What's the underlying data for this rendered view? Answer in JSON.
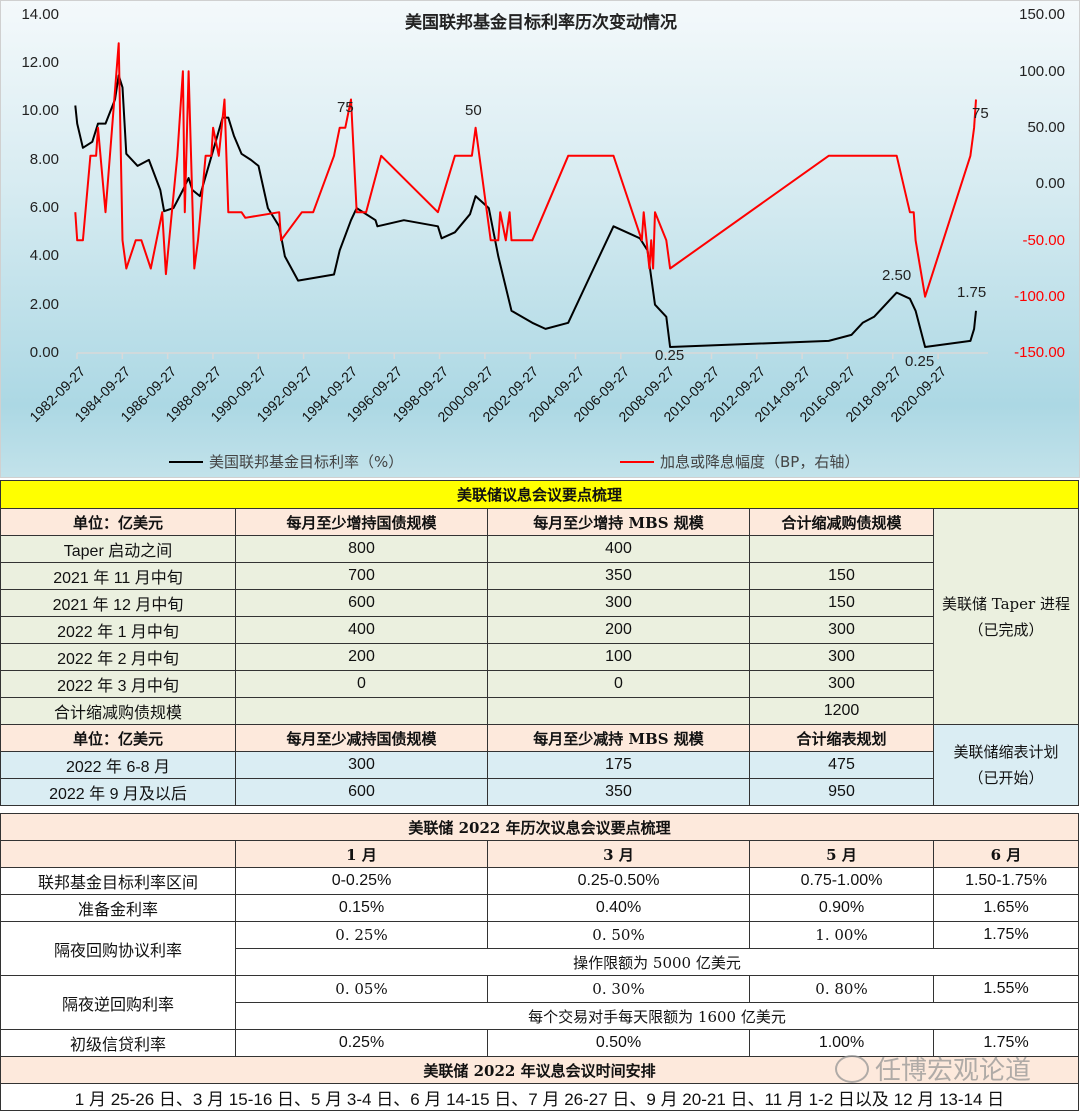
{
  "chart_data": {
    "type": "line",
    "title": "美国联邦基金目标利率历次变动情况",
    "xlabel": "",
    "ylabel_left": "美国联邦基金目标利率（%）",
    "ylabel_right": "加息或降息幅度（BP，右轴）",
    "y_left_ticks": [
      "14.00",
      "12.00",
      "10.00",
      "8.00",
      "6.00",
      "4.00",
      "2.00",
      "0.00"
    ],
    "y_right_ticks": [
      "150.00",
      "100.00",
      "50.00",
      "0.00",
      "-50.00",
      "-100.00",
      "-150.00"
    ],
    "ylim_left": [
      0,
      14
    ],
    "ylim_right": [
      -150,
      150
    ],
    "x_ticks": [
      "1982-09-27",
      "1984-09-27",
      "1986-09-27",
      "1988-09-27",
      "1990-09-27",
      "1992-09-27",
      "1994-09-27",
      "1996-09-27",
      "1998-09-27",
      "2000-09-27",
      "2002-09-27",
      "2004-09-27",
      "2006-09-27",
      "2008-09-27",
      "2010-09-27",
      "2012-09-27",
      "2014-09-27",
      "2016-09-27",
      "2018-09-27",
      "2020-09-27"
    ],
    "legend_position": "bottom",
    "grid": false,
    "annotations": [
      {
        "text": "75",
        "series": "加息或降息幅度（BP，右轴）",
        "x": "1994-11",
        "y": 75
      },
      {
        "text": "50",
        "series": "加息或降息幅度（BP，右轴）",
        "x": "2000-05",
        "y": 50
      },
      {
        "text": "75",
        "series": "加息或降息幅度（BP，右轴）",
        "x": "2022-06",
        "y": 75
      },
      {
        "text": "0.25",
        "series": "美国联邦基金目标利率（%）",
        "x": "2008-12",
        "y": 0.25
      },
      {
        "text": "2.50",
        "series": "美国联邦基金目标利率（%）",
        "x": "2018-12",
        "y": 2.5
      },
      {
        "text": "0.25",
        "series": "美国联邦基金目标利率（%）",
        "x": "2020-03",
        "y": 0.25
      },
      {
        "text": "1.75",
        "series": "美国联邦基金目标利率（%）",
        "x": "2022-06",
        "y": 1.75
      }
    ],
    "series": [
      {
        "name": "美国联邦基金目标利率（%）",
        "color": "#000000",
        "axis": "left",
        "points": [
          [
            "1982-09",
            10.25
          ],
          [
            "1982-10",
            9.5
          ],
          [
            "1983-01",
            8.5
          ],
          [
            "1983-06",
            8.75
          ],
          [
            "1983-09",
            9.5
          ],
          [
            "1984-01",
            9.5
          ],
          [
            "1984-06",
            10.5
          ],
          [
            "1984-08",
            11.5
          ],
          [
            "1984-10",
            11.0
          ],
          [
            "1984-12",
            8.25
          ],
          [
            "1985-06",
            7.75
          ],
          [
            "1985-12",
            8.0
          ],
          [
            "1986-06",
            6.75
          ],
          [
            "1986-08",
            5.875
          ],
          [
            "1987-01",
            6.0
          ],
          [
            "1987-06",
            6.75
          ],
          [
            "1987-09",
            7.25
          ],
          [
            "1987-11",
            6.75
          ],
          [
            "1988-03",
            6.5
          ],
          [
            "1988-09",
            8.125
          ],
          [
            "1989-03",
            9.75
          ],
          [
            "1989-06",
            9.75
          ],
          [
            "1989-09",
            9.0
          ],
          [
            "1990-01",
            8.25
          ],
          [
            "1990-06",
            8.0
          ],
          [
            "1990-10",
            7.75
          ],
          [
            "1991-03",
            6.0
          ],
          [
            "1991-09",
            5.25
          ],
          [
            "1991-12",
            4.0
          ],
          [
            "1992-07",
            3.0
          ],
          [
            "1994-02",
            3.25
          ],
          [
            "1994-05",
            4.25
          ],
          [
            "1994-11",
            5.5
          ],
          [
            "1995-02",
            6.0
          ],
          [
            "1995-12",
            5.5
          ],
          [
            "1996-01",
            5.25
          ],
          [
            "1997-03",
            5.5
          ],
          [
            "1998-09",
            5.25
          ],
          [
            "1998-11",
            4.75
          ],
          [
            "1999-06",
            5.0
          ],
          [
            "2000-02",
            5.75
          ],
          [
            "2000-05",
            6.5
          ],
          [
            "2000-12",
            6.0
          ],
          [
            "2001-05",
            4.0
          ],
          [
            "2001-12",
            1.75
          ],
          [
            "2002-11",
            1.25
          ],
          [
            "2003-06",
            1.0
          ],
          [
            "2004-06",
            1.25
          ],
          [
            "2005-06",
            3.25
          ],
          [
            "2006-06",
            5.25
          ],
          [
            "2007-08",
            4.75
          ],
          [
            "2007-12",
            4.25
          ],
          [
            "2008-04",
            2.0
          ],
          [
            "2008-10",
            1.5
          ],
          [
            "2008-12",
            0.25
          ],
          [
            "2015-12",
            0.5
          ],
          [
            "2016-12",
            0.75
          ],
          [
            "2017-06",
            1.25
          ],
          [
            "2017-12",
            1.5
          ],
          [
            "2018-12",
            2.5
          ],
          [
            "2019-07",
            2.25
          ],
          [
            "2019-10",
            1.75
          ],
          [
            "2020-03",
            0.25
          ],
          [
            "2022-03",
            0.5
          ],
          [
            "2022-05",
            1.0
          ],
          [
            "2022-06",
            1.75
          ]
        ]
      },
      {
        "name": "加息或降息幅度（BP，右轴）",
        "color": "#ff0000",
        "axis": "right",
        "points": [
          [
            "1982-09",
            -25
          ],
          [
            "1982-10",
            -50
          ],
          [
            "1983-01",
            -50
          ],
          [
            "1983-05",
            25
          ],
          [
            "1983-08",
            25
          ],
          [
            "1983-09",
            50
          ],
          [
            "1984-01",
            -25
          ],
          [
            "1984-08",
            125
          ],
          [
            "1984-10",
            -50
          ],
          [
            "1984-12",
            -75
          ],
          [
            "1985-05",
            -50
          ],
          [
            "1985-08",
            -50
          ],
          [
            "1986-01",
            -75
          ],
          [
            "1986-04",
            -50
          ],
          [
            "1986-07",
            -25
          ],
          [
            "1986-09",
            -80
          ],
          [
            "1987-03",
            25
          ],
          [
            "1987-06",
            100
          ],
          [
            "1987-07",
            -25
          ],
          [
            "1987-09",
            100
          ],
          [
            "1987-12",
            -75
          ],
          [
            "1988-02",
            -50
          ],
          [
            "1988-06",
            25
          ],
          [
            "1988-09",
            25
          ],
          [
            "1988-10",
            50
          ],
          [
            "1989-01",
            25
          ],
          [
            "1989-04",
            75
          ],
          [
            "1989-06",
            -25
          ],
          [
            "1990-01",
            -25
          ],
          [
            "1990-03",
            -30
          ],
          [
            "1991-09",
            -25
          ],
          [
            "1991-10",
            -50
          ],
          [
            "1992-09",
            -25
          ],
          [
            "1993-03",
            -25
          ],
          [
            "1994-02",
            25
          ],
          [
            "1994-05",
            50
          ],
          [
            "1994-08",
            50
          ],
          [
            "1994-11",
            75
          ],
          [
            "1995-02",
            -25
          ],
          [
            "1995-07",
            -25
          ],
          [
            "1996-03",
            25
          ],
          [
            "1998-09",
            -25
          ],
          [
            "1999-06",
            25
          ],
          [
            "2000-03",
            25
          ],
          [
            "2000-05",
            50
          ],
          [
            "2001-01",
            -50
          ],
          [
            "2001-05",
            -50
          ],
          [
            "2001-06",
            -25
          ],
          [
            "2001-09",
            -50
          ],
          [
            "2001-11",
            -25
          ],
          [
            "2001-12",
            -50
          ],
          [
            "2002-11",
            -50
          ],
          [
            "2004-06",
            25
          ],
          [
            "2006-06",
            25
          ],
          [
            "2007-09",
            -50
          ],
          [
            "2007-10",
            -25
          ],
          [
            "2008-01",
            -75
          ],
          [
            "2008-02",
            -50
          ],
          [
            "2008-03",
            -75
          ],
          [
            "2008-04",
            -25
          ],
          [
            "2008-10",
            -50
          ],
          [
            "2008-12",
            -75
          ],
          [
            "2015-12",
            25
          ],
          [
            "2018-12",
            25
          ],
          [
            "2019-07",
            -25
          ],
          [
            "2019-09",
            -25
          ],
          [
            "2019-10",
            -50
          ],
          [
            "2020-03",
            -100
          ],
          [
            "2022-03",
            25
          ],
          [
            "2022-05",
            50
          ],
          [
            "2022-06",
            75
          ]
        ]
      }
    ]
  },
  "chart": {
    "title": "美国联邦基金目标利率历次变动情况",
    "legend_left": "美国联邦基金目标利率（%）",
    "legend_right": "加息或降息幅度（BP，右轴）",
    "labels": {
      "a75_1": "75",
      "a50": "50",
      "a75_2": "75",
      "a025_1": "0.25",
      "a250": "2.50",
      "a025_2": "0.25",
      "a175": "1.75"
    }
  },
  "table1": {
    "title": "美联储议息会议要点梳理",
    "headers": [
      "单位：亿美元",
      "每月至少增持国债规模",
      "每月至少增持 MBS 规模",
      "合计缩减购债规模"
    ],
    "rows": [
      [
        "Taper 启动之间",
        "800",
        "400",
        ""
      ],
      [
        "2021 年 11 月中旬",
        "700",
        "350",
        "150"
      ],
      [
        "2021 年 12 月中旬",
        "600",
        "300",
        "150"
      ],
      [
        "2022 年 1 月中旬",
        "400",
        "200",
        "300"
      ],
      [
        "2022 年 2 月中旬",
        "200",
        "100",
        "300"
      ],
      [
        "2022 年 3 月中旬",
        "0",
        "0",
        "300"
      ],
      [
        "合计缩减购债规模",
        "",
        "",
        "1200"
      ]
    ],
    "side_note": "美联储 Taper 进程（已完成）"
  },
  "table2": {
    "headers": [
      "单位：亿美元",
      "每月至少减持国债规模",
      "每月至少减持 MBS 规模",
      "合计缩表规划"
    ],
    "rows": [
      [
        "2022 年 6-8 月",
        "300",
        "175",
        "475"
      ],
      [
        "2022 年 9 月及以后",
        "600",
        "350",
        "950"
      ]
    ],
    "side_note": "美联储缩表计划（已开始）"
  },
  "table3": {
    "title": "美联储 2022 年历次议息会议要点梳理",
    "headers": [
      "",
      "1 月",
      "3 月",
      "5 月",
      "6 月"
    ],
    "rows": {
      "fed_funds": [
        "联邦基金目标利率区间",
        "0-0.25%",
        "0.25-0.50%",
        "0.75-1.00%",
        "1.50-1.75%"
      ],
      "reserve": [
        "准备金利率",
        "0.15%",
        "0.40%",
        "0.90%",
        "1.65%"
      ],
      "repo": [
        "隔夜回购协议利率",
        "0. 25%",
        "0. 50%",
        "1. 00%",
        "1.75%"
      ],
      "repo_note": "操作限额为 5000 亿美元",
      "reverse_repo": [
        "隔夜逆回购利率",
        "0. 05%",
        "0. 30%",
        "0. 80%",
        "1.55%"
      ],
      "reverse_repo_note": "每个交易对手每天限额为 1600 亿美元",
      "primary_credit": [
        "初级信贷利率",
        "0.25%",
        "0.50%",
        "1.00%",
        "1.75%"
      ]
    }
  },
  "schedule": {
    "title": "美联储 2022 年议息会议时间安排",
    "text": "1 月 25-26 日、3 月 15-16 日、5 月 3-4 日、6 月 14-15 日、7 月 26-27 日、9 月 20-21 日、11 月 1-2 日以及 12 月 13-14 日"
  },
  "watermark": "任博宏观论道",
  "colors": {
    "yellow": "#ffff00",
    "peach": "#fde9dc",
    "green": "#ebf0df",
    "blue": "#daedf3",
    "red": "#ff0000",
    "black": "#000000"
  }
}
